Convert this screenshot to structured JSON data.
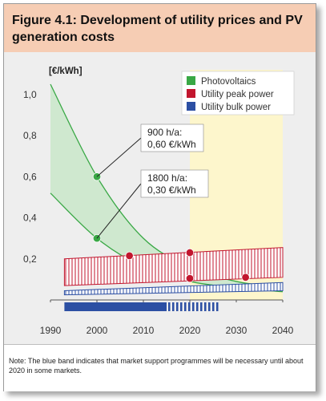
{
  "figure": {
    "title": "Figure 4.1: Development of utility prices and PV generation costs",
    "note": "Note: The blue band indicates that market support programmes will be necessary until about 2020 in some markets."
  },
  "chart_data": {
    "type": "area",
    "title": "Figure 4.1: Development of utility prices and PV generation costs",
    "ylabel": "[€/kWh]",
    "xlabel": "",
    "xlim": [
      1990,
      2040
    ],
    "ylim": [
      0,
      1.05
    ],
    "x_ticks": [
      1990,
      2000,
      2010,
      2020,
      2030,
      2040
    ],
    "y_ticks": [
      {
        "value": 0.2,
        "label": "0,2"
      },
      {
        "value": 0.4,
        "label": "0,4"
      },
      {
        "value": 0.6,
        "label": "0,6"
      },
      {
        "value": 0.8,
        "label": "0,8"
      },
      {
        "value": 1.0,
        "label": "1,0"
      }
    ],
    "grid": false,
    "legend_position": "top-right",
    "highlight_region": {
      "x_start": 2020,
      "x_end": 2040,
      "color": "#fdf6cc"
    },
    "series": [
      {
        "name": "Photovoltaics",
        "color": "#39a845",
        "fill": "#cfe8cf",
        "x": [
          1990,
          2000,
          2010,
          2020,
          2030,
          2040
        ],
        "upper": [
          1.05,
          0.6,
          0.3,
          0.16,
          0.09,
          0.06
        ],
        "lower": [
          0.52,
          0.3,
          0.16,
          0.09,
          0.06,
          0.04
        ]
      },
      {
        "name": "Utility peak power",
        "color": "#c2162e",
        "x": [
          1993,
          2040
        ],
        "upper": [
          0.2,
          0.255
        ],
        "lower": [
          0.07,
          0.11
        ]
      },
      {
        "name": "Utility bulk power",
        "color": "#2c4fa3",
        "x": [
          1993,
          2040
        ],
        "upper": [
          0.045,
          0.085
        ],
        "lower": [
          0.025,
          0.045
        ]
      }
    ],
    "markers": [
      {
        "x": 2000,
        "y": 0.6,
        "color": "#39a845"
      },
      {
        "x": 2000,
        "y": 0.3,
        "color": "#39a845"
      },
      {
        "x": 2007,
        "y": 0.215,
        "color": "#c2162e"
      },
      {
        "x": 2020,
        "y": 0.23,
        "color": "#c2162e"
      },
      {
        "x": 2020,
        "y": 0.105,
        "color": "#c2162e"
      },
      {
        "x": 2032,
        "y": 0.11,
        "color": "#c2162e"
      }
    ],
    "annotations": [
      {
        "line1": "900 h/a:",
        "line2": "0,60 €/kWh",
        "target_x": 2000,
        "target_y": 0.6
      },
      {
        "line1": "1800 h/a:",
        "line2": "0,30 €/kWh",
        "target_x": 2000,
        "target_y": 0.3
      }
    ],
    "support_band": {
      "solid_from": 1993,
      "solid_to": 2015,
      "striped_from": 2015,
      "striped_to": 2026,
      "color": "#2c4fa3"
    }
  }
}
